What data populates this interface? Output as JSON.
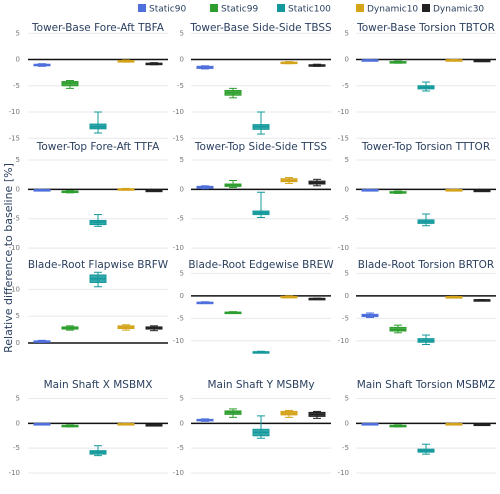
{
  "ylabel": "Relative difference to baseline [%]",
  "chart_data": [
    {
      "type": "box",
      "title": "Tower-Base Fore-Aft TBFA",
      "ylim": [
        -16,
        6
      ],
      "yticks": [
        5,
        0,
        -5,
        -10,
        -15
      ],
      "zeroline": true,
      "series": [
        {
          "name": "Static90",
          "color": "#4f6fdc",
          "low": -1.3,
          "q1": -1.2,
          "median": -1.0,
          "q3": -0.9,
          "high": -0.8
        },
        {
          "name": "Static99",
          "color": "#2e9e2e",
          "low": -5.5,
          "q1": -5.0,
          "median": -4.5,
          "q3": -4.2,
          "high": -4.0
        },
        {
          "name": "Static100",
          "color": "#13999b",
          "low": -14.0,
          "q1": -13.2,
          "median": -12.8,
          "q3": -12.3,
          "high": -10.0
        },
        {
          "name": "Dynamic10",
          "color": "#d4a31a",
          "low": -0.5,
          "q1": -0.4,
          "median": -0.3,
          "q3": -0.2,
          "high": -0.1
        },
        {
          "name": "Dynamic30",
          "color": "#222222",
          "low": -1.0,
          "q1": -0.9,
          "median": -0.8,
          "q3": -0.7,
          "high": -0.6
        }
      ]
    },
    {
      "type": "box",
      "title": "Tower-Base Side-Side TBSS",
      "ylim": [
        -16,
        6
      ],
      "yticks": [
        5,
        0,
        -5,
        -10,
        -15
      ],
      "zeroline": true,
      "series": [
        {
          "name": "Static90",
          "color": "#4f6fdc",
          "low": -1.8,
          "q1": -1.7,
          "median": -1.5,
          "q3": -1.3,
          "high": -1.2
        },
        {
          "name": "Static99",
          "color": "#2e9e2e",
          "low": -7.3,
          "q1": -6.8,
          "median": -6.3,
          "q3": -5.9,
          "high": -5.5
        },
        {
          "name": "Static100",
          "color": "#13999b",
          "low": -14.2,
          "q1": -13.3,
          "median": -12.8,
          "q3": -12.4,
          "high": -10.0
        },
        {
          "name": "Dynamic10",
          "color": "#d4a31a",
          "low": -0.8,
          "q1": -0.7,
          "median": -0.6,
          "q3": -0.5,
          "high": -0.4
        },
        {
          "name": "Dynamic30",
          "color": "#222222",
          "low": -1.3,
          "q1": -1.2,
          "median": -1.1,
          "q3": -1.0,
          "high": -0.9
        }
      ]
    },
    {
      "type": "box",
      "title": "Tower-Base Torsion TBTOR",
      "ylim": [
        -16,
        6
      ],
      "yticks": [
        5,
        0,
        -5,
        -10,
        -15
      ],
      "zeroline": true,
      "series": [
        {
          "name": "Static90",
          "color": "#4f6fdc",
          "low": -0.2,
          "q1": -0.15,
          "median": -0.1,
          "q3": -0.05,
          "high": 0.0
        },
        {
          "name": "Static99",
          "color": "#2e9e2e",
          "low": -0.7,
          "q1": -0.6,
          "median": -0.5,
          "q3": -0.4,
          "high": -0.3
        },
        {
          "name": "Static100",
          "color": "#13999b",
          "low": -6.0,
          "q1": -5.6,
          "median": -5.3,
          "q3": -5.0,
          "high": -4.3
        },
        {
          "name": "Dynamic10",
          "color": "#d4a31a",
          "low": -0.2,
          "q1": -0.15,
          "median": -0.1,
          "q3": -0.05,
          "high": 0.0
        },
        {
          "name": "Dynamic30",
          "color": "#222222",
          "low": -0.3,
          "q1": -0.25,
          "median": -0.2,
          "q3": -0.15,
          "high": -0.1
        }
      ]
    },
    {
      "type": "box",
      "title": "Tower-Top Fore-Aft TTFA",
      "ylim": [
        -10.5,
        5.5
      ],
      "yticks": [
        5,
        0,
        -5,
        -10
      ],
      "zeroline": true,
      "series": [
        {
          "name": "Static90",
          "color": "#4f6fdc",
          "low": -0.2,
          "q1": -0.15,
          "median": -0.1,
          "q3": -0.05,
          "high": 0.0
        },
        {
          "name": "Static99",
          "color": "#2e9e2e",
          "low": -0.6,
          "q1": -0.5,
          "median": -0.4,
          "q3": -0.3,
          "high": -0.2
        },
        {
          "name": "Static100",
          "color": "#13999b",
          "low": -6.3,
          "q1": -6.0,
          "median": -5.6,
          "q3": -5.3,
          "high": -4.3
        },
        {
          "name": "Dynamic10",
          "color": "#d4a31a",
          "low": -0.15,
          "q1": -0.1,
          "median": 0.0,
          "q3": 0.1,
          "high": 0.15
        },
        {
          "name": "Dynamic30",
          "color": "#222222",
          "low": -0.3,
          "q1": -0.25,
          "median": -0.2,
          "q3": -0.15,
          "high": -0.1
        }
      ]
    },
    {
      "type": "box",
      "title": "Tower-Top Side-Side TTSS",
      "ylim": [
        -10.5,
        5.5
      ],
      "yticks": [
        5,
        0,
        -5,
        -10
      ],
      "zeroline": true,
      "series": [
        {
          "name": "Static90",
          "color": "#4f6fdc",
          "low": 0.1,
          "q1": 0.2,
          "median": 0.3,
          "q3": 0.5,
          "high": 0.6
        },
        {
          "name": "Static99",
          "color": "#2e9e2e",
          "low": 0.3,
          "q1": 0.5,
          "median": 0.7,
          "q3": 0.9,
          "high": 1.5
        },
        {
          "name": "Static100",
          "color": "#13999b",
          "low": -4.8,
          "q1": -4.3,
          "median": -4.0,
          "q3": -3.7,
          "high": -0.5
        },
        {
          "name": "Dynamic10",
          "color": "#d4a31a",
          "low": 1.0,
          "q1": 1.3,
          "median": 1.5,
          "q3": 1.8,
          "high": 2.0
        },
        {
          "name": "Dynamic30",
          "color": "#222222",
          "low": 0.6,
          "q1": 0.9,
          "median": 1.1,
          "q3": 1.4,
          "high": 1.7
        }
      ]
    },
    {
      "type": "box",
      "title": "Tower-Top Torsion TTTOR",
      "ylim": [
        -10.5,
        5.5
      ],
      "yticks": [
        5,
        0,
        -5,
        -10
      ],
      "zeroline": true,
      "series": [
        {
          "name": "Static90",
          "color": "#4f6fdc",
          "low": -0.2,
          "q1": -0.15,
          "median": -0.1,
          "q3": -0.05,
          "high": 0.0
        },
        {
          "name": "Static99",
          "color": "#2e9e2e",
          "low": -0.7,
          "q1": -0.6,
          "median": -0.5,
          "q3": -0.4,
          "high": -0.3
        },
        {
          "name": "Static100",
          "color": "#13999b",
          "low": -6.2,
          "q1": -5.8,
          "median": -5.5,
          "q3": -5.2,
          "high": -4.2
        },
        {
          "name": "Dynamic10",
          "color": "#d4a31a",
          "low": -0.2,
          "q1": -0.15,
          "median": -0.1,
          "q3": -0.05,
          "high": 0.0
        },
        {
          "name": "Dynamic30",
          "color": "#222222",
          "low": -0.3,
          "q1": -0.25,
          "median": -0.2,
          "q3": -0.15,
          "high": -0.1
        }
      ]
    },
    {
      "type": "box",
      "title": "Blade-Root Flapwise BRFW",
      "ylim": [
        -2.8,
        14
      ],
      "yticks": [
        10,
        5,
        0
      ],
      "zeroline": true,
      "series": [
        {
          "name": "Static90",
          "color": "#4f6fdc",
          "low": 0.1,
          "q1": 0.2,
          "median": 0.3,
          "q3": 0.4,
          "high": 0.5
        },
        {
          "name": "Static99",
          "color": "#2e9e2e",
          "low": 2.4,
          "q1": 2.6,
          "median": 2.8,
          "q3": 3.0,
          "high": 3.2
        },
        {
          "name": "Static100",
          "color": "#13999b",
          "low": 10.5,
          "q1": 11.3,
          "median": 12.0,
          "q3": 12.7,
          "high": 13.2
        },
        {
          "name": "Dynamic10",
          "color": "#d4a31a",
          "low": 2.4,
          "q1": 2.7,
          "median": 2.9,
          "q3": 3.2,
          "high": 3.4
        },
        {
          "name": "Dynamic30",
          "color": "#222222",
          "low": 2.3,
          "q1": 2.6,
          "median": 2.8,
          "q3": 3.0,
          "high": 3.2
        }
      ]
    },
    {
      "type": "box",
      "title": "Blade-Root Edgewise BREW",
      "ylim": [
        -13.8,
        6.2
      ],
      "yticks": [
        5,
        0,
        -5,
        -10
      ],
      "zeroline": true,
      "series": [
        {
          "name": "Static90",
          "color": "#4f6fdc",
          "low": -1.7,
          "q1": -1.6,
          "median": -1.5,
          "q3": -1.4,
          "high": -1.3
        },
        {
          "name": "Static99",
          "color": "#2e9e2e",
          "low": -3.9,
          "q1": -3.8,
          "median": -3.7,
          "q3": -3.6,
          "high": -3.5
        },
        {
          "name": "Static100",
          "color": "#13999b",
          "low": -12.7,
          "q1": -12.6,
          "median": -12.5,
          "q3": -12.4,
          "high": -12.3
        },
        {
          "name": "Dynamic10",
          "color": "#d4a31a",
          "low": -0.4,
          "q1": -0.3,
          "median": -0.2,
          "q3": -0.1,
          "high": 0.0
        },
        {
          "name": "Dynamic30",
          "color": "#222222",
          "low": -0.7,
          "q1": -0.65,
          "median": -0.6,
          "q3": -0.55,
          "high": -0.5
        }
      ]
    },
    {
      "type": "box",
      "title": "Blade-Root Torsion BRTOR",
      "ylim": [
        -13.8,
        6.2
      ],
      "yticks": [
        5,
        0,
        -5,
        -10
      ],
      "zeroline": true,
      "series": [
        {
          "name": "Static90",
          "color": "#4f6fdc",
          "low": -4.8,
          "q1": -4.6,
          "median": -4.3,
          "q3": -4.1,
          "high": -3.8
        },
        {
          "name": "Static99",
          "color": "#2e9e2e",
          "low": -8.2,
          "q1": -7.8,
          "median": -7.5,
          "q3": -7.0,
          "high": -6.5
        },
        {
          "name": "Static100",
          "color": "#13999b",
          "low": -10.8,
          "q1": -10.3,
          "median": -9.9,
          "q3": -9.5,
          "high": -8.7
        },
        {
          "name": "Dynamic10",
          "color": "#d4a31a",
          "low": -0.3,
          "q1": -0.25,
          "median": -0.2,
          "q3": -0.15,
          "high": -0.1
        },
        {
          "name": "Dynamic30",
          "color": "#222222",
          "low": -1.0,
          "q1": -0.95,
          "median": -0.9,
          "q3": -0.85,
          "high": -0.8
        }
      ]
    },
    {
      "type": "box",
      "title": "Main Shaft X MSBMX",
      "ylim": [
        -11,
        5.5
      ],
      "yticks": [
        5,
        0,
        -5,
        -10
      ],
      "zeroline": true,
      "series": [
        {
          "name": "Static90",
          "color": "#4f6fdc",
          "low": -0.2,
          "q1": -0.15,
          "median": -0.1,
          "q3": -0.05,
          "high": 0.0
        },
        {
          "name": "Static99",
          "color": "#2e9e2e",
          "low": -0.7,
          "q1": -0.6,
          "median": -0.5,
          "q3": -0.4,
          "high": -0.3
        },
        {
          "name": "Static100",
          "color": "#13999b",
          "low": -6.5,
          "q1": -6.2,
          "median": -5.8,
          "q3": -5.5,
          "high": -4.5
        },
        {
          "name": "Dynamic10",
          "color": "#d4a31a",
          "low": -0.2,
          "q1": -0.15,
          "median": -0.1,
          "q3": -0.05,
          "high": 0.0
        },
        {
          "name": "Dynamic30",
          "color": "#222222",
          "low": -0.4,
          "q1": -0.35,
          "median": -0.3,
          "q3": -0.25,
          "high": -0.2
        }
      ]
    },
    {
      "type": "box",
      "title": "Main Shaft Y MSBMy",
      "ylim": [
        -11,
        5.5
      ],
      "yticks": [
        5,
        0,
        -5,
        -10
      ],
      "zeroline": true,
      "series": [
        {
          "name": "Static90",
          "color": "#4f6fdc",
          "low": 0.4,
          "q1": 0.5,
          "median": 0.6,
          "q3": 0.8,
          "high": 0.9
        },
        {
          "name": "Static99",
          "color": "#2e9e2e",
          "low": 1.2,
          "q1": 1.8,
          "median": 2.2,
          "q3": 2.5,
          "high": 2.9
        },
        {
          "name": "Static100",
          "color": "#13999b",
          "low": -3.0,
          "q1": -2.5,
          "median": -1.8,
          "q3": -1.2,
          "high": 1.5
        },
        {
          "name": "Dynamic10",
          "color": "#d4a31a",
          "low": 1.2,
          "q1": 1.7,
          "median": 2.0,
          "q3": 2.4,
          "high": 2.6
        },
        {
          "name": "Dynamic30",
          "color": "#222222",
          "low": 1.0,
          "q1": 1.4,
          "median": 1.8,
          "q3": 2.2,
          "high": 2.4
        }
      ]
    },
    {
      "type": "box",
      "title": "Main Shaft Torsion  MSBMZ",
      "ylim": [
        -11,
        5.5
      ],
      "yticks": [
        5,
        0,
        -5,
        -10
      ],
      "zeroline": true,
      "series": [
        {
          "name": "Static90",
          "color": "#4f6fdc",
          "low": -0.2,
          "q1": -0.15,
          "median": -0.1,
          "q3": -0.05,
          "high": 0.0
        },
        {
          "name": "Static99",
          "color": "#2e9e2e",
          "low": -0.7,
          "q1": -0.6,
          "median": -0.5,
          "q3": -0.4,
          "high": -0.3
        },
        {
          "name": "Static100",
          "color": "#13999b",
          "low": -6.2,
          "q1": -5.8,
          "median": -5.5,
          "q3": -5.2,
          "high": -4.2
        },
        {
          "name": "Dynamic10",
          "color": "#d4a31a",
          "low": -0.2,
          "q1": -0.15,
          "median": -0.1,
          "q3": -0.05,
          "high": 0.0
        },
        {
          "name": "Dynamic30",
          "color": "#222222",
          "low": -0.3,
          "q1": -0.25,
          "median": -0.2,
          "q3": -0.15,
          "high": -0.1
        }
      ]
    }
  ]
}
